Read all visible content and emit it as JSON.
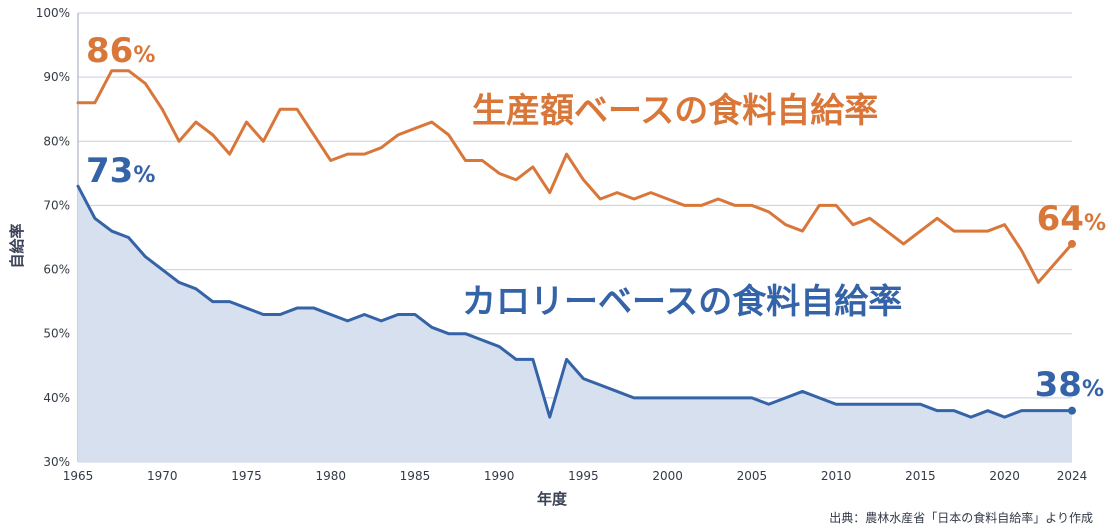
{
  "chart_data": {
    "type": "line",
    "title": "",
    "xlabel": "年度",
    "ylabel": "自給率",
    "xlim": [
      1965,
      2024
    ],
    "ylim": [
      30,
      100
    ],
    "y_ticks": [
      "30%",
      "40%",
      "50%",
      "60%",
      "70%",
      "80%",
      "90%",
      "100%"
    ],
    "y_tick_values": [
      30,
      40,
      50,
      60,
      70,
      80,
      90,
      100
    ],
    "x_ticks": [
      "1965",
      "1970",
      "1975",
      "1980",
      "1985",
      "1990",
      "1995",
      "2000",
      "2005",
      "2010",
      "2015",
      "2020",
      "2024"
    ],
    "x_tick_values": [
      1965,
      1970,
      1975,
      1980,
      1985,
      1990,
      1995,
      2000,
      2005,
      2010,
      2015,
      2020,
      2024
    ],
    "grid": true,
    "series": [
      {
        "name": "生産額ベースの食料自給率",
        "color": "#d9773a",
        "start_label": "86",
        "end_label": "64",
        "percent_sign": "%",
        "x": [
          1965,
          1966,
          1967,
          1968,
          1969,
          1970,
          1971,
          1972,
          1973,
          1974,
          1975,
          1976,
          1977,
          1978,
          1979,
          1980,
          1981,
          1982,
          1983,
          1984,
          1985,
          1986,
          1987,
          1988,
          1989,
          1990,
          1991,
          1992,
          1993,
          1994,
          1995,
          1996,
          1997,
          1998,
          1999,
          2000,
          2001,
          2002,
          2003,
          2004,
          2005,
          2006,
          2007,
          2008,
          2009,
          2010,
          2011,
          2012,
          2013,
          2014,
          2015,
          2016,
          2017,
          2018,
          2019,
          2020,
          2021,
          2022,
          2023,
          2024
        ],
        "values": [
          86,
          86,
          91,
          91,
          89,
          85,
          80,
          83,
          81,
          78,
          83,
          80,
          85,
          85,
          81,
          77,
          78,
          78,
          79,
          81,
          82,
          83,
          81,
          77,
          77,
          75,
          74,
          76,
          72,
          78,
          74,
          71,
          72,
          71,
          72,
          71,
          70,
          70,
          71,
          70,
          70,
          69,
          67,
          66,
          70,
          70,
          67,
          68,
          66,
          64,
          66,
          68,
          66,
          66,
          66,
          67,
          63,
          58,
          61,
          64
        ]
      },
      {
        "name": "カロリーベースの食料自給率",
        "color": "#3563a8",
        "fill": "#d6e0ef",
        "start_label": "73",
        "end_label": "38",
        "percent_sign": "%",
        "x": [
          1965,
          1966,
          1967,
          1968,
          1969,
          1970,
          1971,
          1972,
          1973,
          1974,
          1975,
          1976,
          1977,
          1978,
          1979,
          1980,
          1981,
          1982,
          1983,
          1984,
          1985,
          1986,
          1987,
          1988,
          1989,
          1990,
          1991,
          1992,
          1993,
          1994,
          1995,
          1996,
          1997,
          1998,
          1999,
          2000,
          2001,
          2002,
          2003,
          2004,
          2005,
          2006,
          2007,
          2008,
          2009,
          2010,
          2011,
          2012,
          2013,
          2014,
          2015,
          2016,
          2017,
          2018,
          2019,
          2020,
          2021,
          2022,
          2023,
          2024
        ],
        "values": [
          73,
          68,
          66,
          65,
          62,
          60,
          58,
          57,
          55,
          55,
          54,
          53,
          53,
          54,
          54,
          53,
          52,
          53,
          52,
          53,
          53,
          51,
          50,
          50,
          49,
          48,
          46,
          46,
          37,
          46,
          43,
          42,
          41,
          40,
          40,
          40,
          40,
          40,
          40,
          40,
          40,
          39,
          40,
          41,
          40,
          39,
          39,
          39,
          39,
          39,
          39,
          38,
          38,
          37,
          38,
          37,
          38,
          38,
          38,
          38
        ]
      }
    ],
    "source": "出典：農林水産省「日本の食料自給率」より作成"
  }
}
